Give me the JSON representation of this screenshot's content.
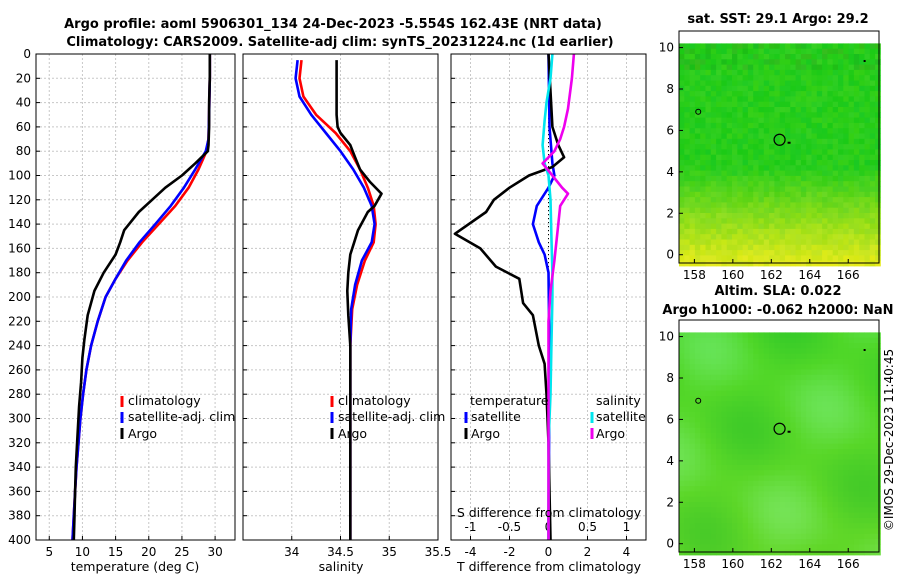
{
  "header": {
    "title_line1": "Argo profile: aoml 5906301_134 24-Dec-2023 -5.554S 162.43E (NRT data)",
    "title_line2": "Climatology: CARS2009. Satellite-adj clim: synTS_20231224.nc (1d earlier)"
  },
  "watermark": "©IMOS 29-Dec-2023 11:40:45",
  "colors": {
    "climatology": "#ff0000",
    "satellite_adj": "#0000ff",
    "argo": "#000000",
    "sat_diff_T": "#0000ff",
    "argo_diff_T": "#000000",
    "sat_diff_S": "#00e5ee",
    "argo_diff_S": "#ee00ee"
  },
  "chart_data": [
    {
      "type": "line",
      "name": "temperature",
      "xlabel": "temperature (deg C)",
      "ylabel": "",
      "xlim": [
        3,
        33
      ],
      "ylim": [
        400,
        0
      ],
      "xticks": [
        "5",
        "10",
        "15",
        "20",
        "25",
        "30"
      ],
      "xtick_values": [
        5,
        10,
        15,
        20,
        25,
        30
      ],
      "yticks": [
        "0",
        "20",
        "40",
        "60",
        "80",
        "100",
        "120",
        "140",
        "160",
        "180",
        "200",
        "220",
        "240",
        "260",
        "280",
        "300",
        "320",
        "340",
        "360",
        "380",
        "400"
      ],
      "grid": true,
      "legend": [
        "climatology",
        "satellite-adj. clim",
        "Argo"
      ],
      "series": [
        {
          "name": "climatology",
          "color": "#ff0000",
          "points": [
            [
              29.2,
              0
            ],
            [
              29.2,
              20
            ],
            [
              29.1,
              50
            ],
            [
              29,
              70
            ],
            [
              28.7,
              80
            ],
            [
              27.5,
              95
            ],
            [
              26,
              110
            ],
            [
              24,
              125
            ],
            [
              21.5,
              140
            ],
            [
              19,
              155
            ],
            [
              16.8,
              170
            ],
            [
              15,
              185
            ],
            [
              13.5,
              200
            ],
            [
              12.3,
              220
            ],
            [
              11.3,
              240
            ],
            [
              10.6,
              260
            ],
            [
              10.1,
              280
            ],
            [
              9.7,
              300
            ],
            [
              9.4,
              320
            ],
            [
              9.1,
              340
            ],
            [
              8.9,
              360
            ],
            [
              8.7,
              380
            ],
            [
              8.5,
              400
            ]
          ]
        },
        {
          "name": "satellite-adj. clim",
          "color": "#0000ff",
          "points": [
            [
              29.2,
              0
            ],
            [
              29.2,
              20
            ],
            [
              29.1,
              50
            ],
            [
              29,
              70
            ],
            [
              28.6,
              80
            ],
            [
              27,
              95
            ],
            [
              25.3,
              110
            ],
            [
              23.3,
              125
            ],
            [
              21,
              140
            ],
            [
              18.6,
              155
            ],
            [
              16.6,
              170
            ],
            [
              15,
              185
            ],
            [
              13.5,
              200
            ],
            [
              12.3,
              220
            ],
            [
              11.3,
              240
            ],
            [
              10.6,
              260
            ],
            [
              10.1,
              280
            ],
            [
              9.7,
              300
            ],
            [
              9.4,
              320
            ],
            [
              9.1,
              340
            ],
            [
              8.9,
              360
            ],
            [
              8.7,
              380
            ],
            [
              8.5,
              400
            ]
          ]
        },
        {
          "name": "Argo",
          "color": "#000000",
          "points": [
            [
              29.2,
              0
            ],
            [
              29.2,
              20
            ],
            [
              29.1,
              40
            ],
            [
              29.1,
              60
            ],
            [
              29,
              75
            ],
            [
              28.9,
              80
            ],
            [
              27,
              90
            ],
            [
              25,
              100
            ],
            [
              22.5,
              110
            ],
            [
              20.5,
              120
            ],
            [
              18.5,
              130
            ],
            [
              16.3,
              145
            ],
            [
              15.7,
              155
            ],
            [
              15,
              165
            ],
            [
              13.2,
              180
            ],
            [
              11.8,
              195
            ],
            [
              10.8,
              215
            ],
            [
              10.3,
              235
            ],
            [
              10,
              250
            ],
            [
              9.8,
              270
            ],
            [
              9.5,
              290
            ],
            [
              9.2,
              320
            ],
            [
              9,
              340
            ],
            [
              8.9,
              360
            ],
            [
              8.8,
              380
            ],
            [
              8.7,
              400
            ]
          ]
        }
      ]
    },
    {
      "type": "line",
      "name": "salinity",
      "xlabel": "salinity",
      "ylabel": "",
      "xlim": [
        33.5,
        35.5
      ],
      "ylim": [
        400,
        0
      ],
      "xticks": [
        "34",
        "34.5",
        "35",
        "35.5"
      ],
      "xtick_values": [
        34,
        34.5,
        35,
        35.5
      ],
      "grid": true,
      "legend": [
        "climatology",
        "satellite-adj. clim",
        "Argo"
      ],
      "series": [
        {
          "name": "climatology",
          "color": "#ff0000",
          "points": [
            [
              34.1,
              5
            ],
            [
              34.08,
              20
            ],
            [
              34.12,
              35
            ],
            [
              34.25,
              50
            ],
            [
              34.45,
              65
            ],
            [
              34.6,
              80
            ],
            [
              34.7,
              95
            ],
            [
              34.78,
              110
            ],
            [
              34.84,
              125
            ],
            [
              34.86,
              140
            ],
            [
              34.84,
              155
            ],
            [
              34.75,
              170
            ],
            [
              34.67,
              190
            ],
            [
              34.62,
              210
            ],
            [
              34.6,
              240
            ],
            [
              34.6,
              300
            ],
            [
              34.6,
              400
            ]
          ]
        },
        {
          "name": "satellite-adj. clim",
          "color": "#0000ff",
          "points": [
            [
              34.06,
              5
            ],
            [
              34.04,
              20
            ],
            [
              34.08,
              35
            ],
            [
              34.2,
              50
            ],
            [
              34.35,
              65
            ],
            [
              34.5,
              80
            ],
            [
              34.63,
              95
            ],
            [
              34.74,
              110
            ],
            [
              34.82,
              125
            ],
            [
              34.85,
              140
            ],
            [
              34.82,
              155
            ],
            [
              34.72,
              170
            ],
            [
              34.65,
              190
            ],
            [
              34.61,
              210
            ],
            [
              34.6,
              240
            ],
            [
              34.6,
              300
            ],
            [
              34.6,
              400
            ]
          ]
        },
        {
          "name": "Argo",
          "color": "#000000",
          "points": [
            [
              34.46,
              5
            ],
            [
              34.46,
              30
            ],
            [
              34.46,
              50
            ],
            [
              34.47,
              60
            ],
            [
              34.5,
              65
            ],
            [
              34.6,
              75
            ],
            [
              34.65,
              85
            ],
            [
              34.7,
              95
            ],
            [
              34.8,
              105
            ],
            [
              34.92,
              115
            ],
            [
              34.85,
              125
            ],
            [
              34.78,
              130
            ],
            [
              34.68,
              145
            ],
            [
              34.64,
              155
            ],
            [
              34.6,
              165
            ],
            [
              34.58,
              180
            ],
            [
              34.57,
              195
            ],
            [
              34.58,
              215
            ],
            [
              34.6,
              240
            ],
            [
              34.6,
              300
            ],
            [
              34.6,
              400
            ]
          ]
        }
      ]
    },
    {
      "type": "line",
      "name": "difference from climatology",
      "xlabel": "T difference from climatology",
      "top_axis_label": "S difference from climatology",
      "xlim": [
        -5,
        5
      ],
      "ylim": [
        400,
        0
      ],
      "xticks": [
        "-4",
        "-2",
        "0",
        "2",
        "4"
      ],
      "xtick_values": [
        -4,
        -2,
        0,
        2,
        4
      ],
      "top_ticks": [
        "-1",
        "-0.5",
        "0",
        "0.5",
        "1"
      ],
      "top_tick_values": [
        -1,
        -0.5,
        0,
        0.5,
        1
      ],
      "s_scale_factor": 4,
      "grid": true,
      "legend_titles": [
        "temperature",
        "salinity"
      ],
      "legend": [
        "satellite",
        "Argo",
        "satellite",
        "Argo"
      ],
      "series": [
        {
          "name": "satellite (T)",
          "color": "#0000ff",
          "points": [
            [
              0,
              0
            ],
            [
              0.05,
              60
            ],
            [
              0.2,
              90
            ],
            [
              0.3,
              100
            ],
            [
              0,
              110
            ],
            [
              -0.6,
              125
            ],
            [
              -0.8,
              140
            ],
            [
              -0.5,
              155
            ],
            [
              -0.2,
              165
            ],
            [
              0,
              180
            ],
            [
              0.05,
              250
            ],
            [
              0,
              400
            ]
          ]
        },
        {
          "name": "Argo (T)",
          "color": "#000000",
          "points": [
            [
              0,
              0
            ],
            [
              0.2,
              60
            ],
            [
              0.5,
              75
            ],
            [
              0.8,
              85
            ],
            [
              0.2,
              93
            ],
            [
              -1,
              100
            ],
            [
              -2,
              110
            ],
            [
              -2.8,
              120
            ],
            [
              -3.2,
              130
            ],
            [
              -4.8,
              148
            ],
            [
              -3.5,
              160
            ],
            [
              -2.7,
              175
            ],
            [
              -1.5,
              185
            ],
            [
              -1.3,
              205
            ],
            [
              -0.8,
              215
            ],
            [
              -0.5,
              240
            ],
            [
              -0.2,
              255
            ],
            [
              -0.1,
              280
            ],
            [
              0,
              320
            ],
            [
              0.1,
              400
            ]
          ]
        },
        {
          "name": "satellite (S)",
          "color": "#00e5ee",
          "points": [
            [
              0.2,
              0
            ],
            [
              0.1,
              20
            ],
            [
              -0.1,
              40
            ],
            [
              -0.2,
              55
            ],
            [
              -0.3,
              75
            ],
            [
              -0.2,
              90
            ],
            [
              0,
              100
            ],
            [
              0.1,
              120
            ],
            [
              0.15,
              150
            ],
            [
              0.2,
              180
            ],
            [
              0.2,
              200
            ],
            [
              0.15,
              240
            ],
            [
              0.1,
              280
            ],
            [
              0,
              320
            ],
            [
              0,
              400
            ]
          ]
        },
        {
          "name": "Argo (S)",
          "color": "#ee00ee",
          "points": [
            [
              1.3,
              0
            ],
            [
              1.2,
              20
            ],
            [
              1,
              45
            ],
            [
              0.8,
              60
            ],
            [
              0.6,
              70
            ],
            [
              0.3,
              80
            ],
            [
              -0.3,
              90
            ],
            [
              0.2,
              100
            ],
            [
              0.7,
              110
            ],
            [
              1,
              115
            ],
            [
              0.6,
              125
            ],
            [
              0.5,
              140
            ],
            [
              0.3,
              170
            ],
            [
              0.1,
              195
            ],
            [
              0,
              220
            ],
            [
              0,
              300
            ],
            [
              0,
              400
            ]
          ]
        }
      ]
    },
    {
      "type": "heatmap",
      "name": "satellite SST map",
      "title": "sat. SST: 29.1 Argo: 29.2",
      "xticks": [
        "158",
        "160",
        "162",
        "164",
        "166"
      ],
      "xtick_values": [
        158,
        160,
        162,
        164,
        166
      ],
      "yticks": [
        "0",
        "2",
        "4",
        "6",
        "8",
        "10"
      ],
      "ytick_values": [
        0,
        2,
        4,
        6,
        8,
        10
      ],
      "xlim": [
        157.2,
        167.6
      ],
      "ylim": [
        -0.4,
        10.8
      ],
      "data_ylim_top": 10.2,
      "profile_location": [
        162.43,
        5.55
      ],
      "bottom_values_top_band": "yellow-green"
    },
    {
      "type": "heatmap",
      "name": "altimetry SLA map",
      "title_line1": "Altim. SLA: 0.022",
      "title_line2": "Argo h1000: -0.062 h2000: NaN",
      "xticks": [
        "158",
        "160",
        "162",
        "164",
        "166"
      ],
      "xtick_values": [
        158,
        160,
        162,
        164,
        166
      ],
      "yticks": [
        "0",
        "2",
        "4",
        "6",
        "8",
        "10"
      ],
      "ytick_values": [
        0,
        2,
        4,
        6,
        8,
        10
      ],
      "xlim": [
        157.2,
        167.6
      ],
      "ylim": [
        -0.4,
        10.8
      ],
      "data_ylim_top": 10.2,
      "profile_location": [
        162.43,
        5.55
      ]
    }
  ]
}
